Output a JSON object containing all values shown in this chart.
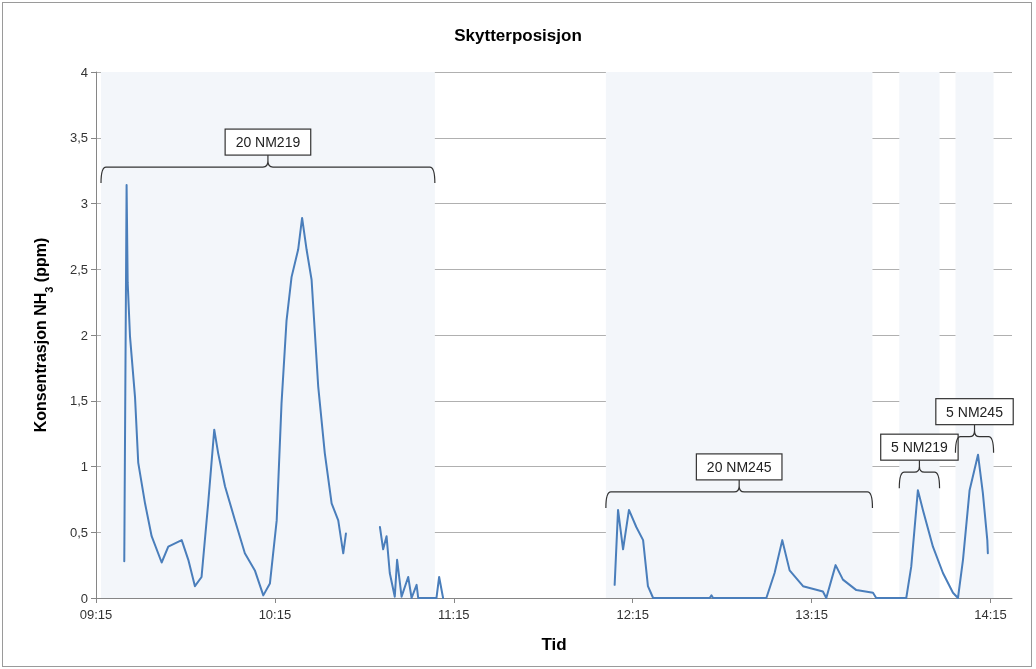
{
  "chart_data": {
    "type": "line",
    "title": "Skytterposisjon",
    "xlabel": "Tid",
    "ylabel": "Konsentrasjon NH$_{3}$ (ppm)",
    "xlim": [
      9.25,
      14.37
    ],
    "xticks": [
      {
        "value": 9.25,
        "label": "09:15"
      },
      {
        "value": 10.25,
        "label": "10:15"
      },
      {
        "value": 11.25,
        "label": "11:15"
      },
      {
        "value": 12.25,
        "label": "12:15"
      },
      {
        "value": 13.25,
        "label": "13:15"
      },
      {
        "value": 14.25,
        "label": "14:15"
      }
    ],
    "ylim": [
      0,
      4
    ],
    "yticks": [
      0,
      {
        "value": 0.5,
        "label": "0,5"
      },
      1,
      {
        "value": 1.5,
        "label": "1,5"
      },
      2,
      {
        "value": 2.5,
        "label": "2,5"
      },
      3,
      {
        "value": 3.5,
        "label": "3,5"
      },
      4
    ],
    "grid": "y",
    "marker": "none",
    "line_style": "solid",
    "series": [
      {
        "color": "#4a7ebb",
        "x": [
          9.408,
          9.421,
          9.427,
          9.44,
          9.468,
          9.486,
          9.524,
          9.561,
          9.617,
          9.654,
          9.729,
          9.766,
          9.803,
          9.84,
          9.877,
          9.911,
          9.933,
          9.971,
          10.027,
          10.082,
          10.138,
          10.185,
          10.222,
          10.26,
          10.287,
          10.315,
          10.343,
          10.38,
          10.402,
          10.427,
          10.455,
          10.492,
          10.529,
          10.567,
          10.604,
          10.632,
          10.647,
          10.74,
          10.837,
          10.855,
          10.874,
          10.892,
          10.92,
          10.933,
          10.958,
          10.995,
          11.014,
          11.042,
          11.051,
          11.153,
          11.168,
          11.19,
          11.6,
          12.149,
          12.168,
          12.196,
          12.229,
          12.27,
          12.308,
          12.335,
          12.364,
          12.68,
          12.69,
          12.699,
          12.997,
          13.043,
          13.086,
          13.127,
          13.202,
          13.313,
          13.332,
          13.384,
          13.425,
          13.5,
          13.593,
          13.611,
          13.779,
          13.807,
          13.844,
          13.872,
          13.928,
          13.984,
          14.04,
          14.068,
          14.096,
          14.133,
          14.18,
          14.207,
          14.232,
          14.235
        ],
        "values": [
          0.28,
          3.14,
          2.4,
          1.99,
          1.53,
          1.03,
          0.72,
          0.47,
          0.27,
          0.39,
          0.44,
          0.29,
          0.09,
          0.16,
          0.72,
          1.28,
          1.1,
          0.85,
          0.59,
          0.34,
          0.21,
          0.02,
          0.11,
          0.59,
          1.48,
          2.11,
          2.44,
          2.65,
          2.89,
          2.65,
          2.42,
          1.61,
          1.1,
          0.72,
          0.59,
          0.34,
          0.49,
          null,
          0.54,
          0.37,
          0.47,
          0.19,
          0.01,
          0.29,
          0.01,
          0.16,
          0,
          0.1,
          0,
          0,
          0.16,
          0,
          null,
          0.1,
          0.67,
          0.37,
          0.67,
          0.54,
          0.44,
          0.09,
          0,
          0,
          0.02,
          0,
          0,
          0.19,
          0.44,
          0.21,
          0.09,
          0.05,
          0,
          0.25,
          0.14,
          0.06,
          0.04,
          0,
          0,
          0.24,
          0.82,
          0.67,
          0.39,
          0.19,
          0.04,
          0,
          0.29,
          0.82,
          1.09,
          0.8,
          0.44,
          0.34
        ]
      }
    ],
    "bands": [
      {
        "axis": "x",
        "from": 9.278,
        "to": 11.144,
        "label": "20 NM219"
      },
      {
        "axis": "x",
        "from": 12.1,
        "to": 13.59,
        "label": "20 NM245"
      },
      {
        "axis": "x",
        "from": 13.74,
        "to": 13.965,
        "label": "5 NM219"
      },
      {
        "axis": "x",
        "from": 14.054,
        "to": 14.267,
        "label": "5 NM245"
      }
    ]
  }
}
